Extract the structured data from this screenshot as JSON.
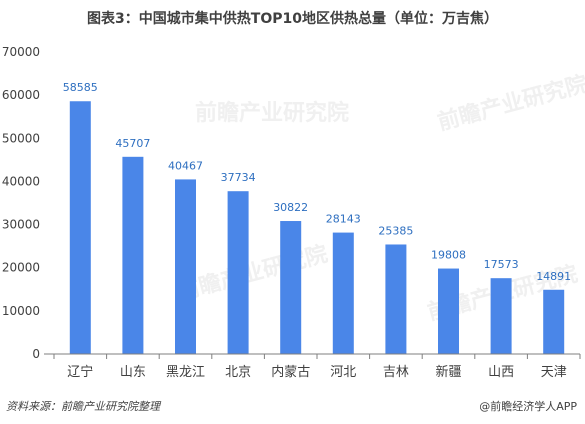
{
  "title": "图表3：中国城市集中供热TOP10地区供热总量（单位：万吉焦）",
  "footer": {
    "source": "资料来源：前瞻产业研究院整理",
    "credit": "@前瞻经济学人APP"
  },
  "watermark": "前瞻产业研究院",
  "colors": {
    "bar": "#4a86e8",
    "label": "#2e6fc0",
    "axis": "#7f7f7f",
    "text": "#404040"
  },
  "chart_data": {
    "type": "bar",
    "title": "图表3：中国城市集中供热TOP10地区供热总量（单位：万吉焦）",
    "categories": [
      "辽宁",
      "山东",
      "黑龙江",
      "北京",
      "内蒙古",
      "河北",
      "吉林",
      "新疆",
      "山西",
      "天津"
    ],
    "values": [
      58585,
      45707,
      40467,
      37734,
      30822,
      28143,
      25385,
      19808,
      17573,
      14891
    ],
    "ylim": [
      0,
      70000
    ],
    "yticks": [
      0,
      10000,
      20000,
      30000,
      40000,
      50000,
      60000,
      70000
    ],
    "xlabel": "",
    "ylabel": "",
    "grid": false,
    "data_labels": true
  }
}
